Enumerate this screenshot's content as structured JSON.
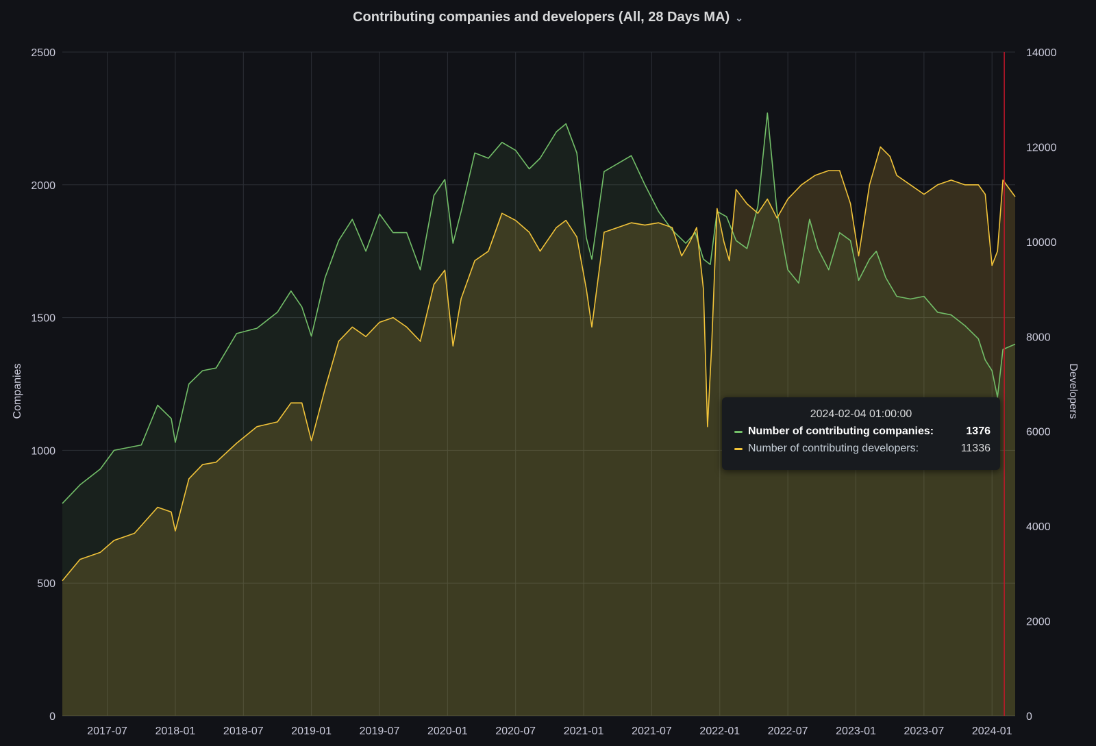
{
  "panel": {
    "title": "Contributing companies and developers (All, 28 Days MA)",
    "chevron_icon": "chevron-down-icon"
  },
  "colors": {
    "background": "#111217",
    "companies": "#73bf69",
    "developers": "#f2c43a",
    "cursor": "#c4162a",
    "grid": "#2c2f36"
  },
  "tooltip": {
    "time": "2024-02-04 01:00:00",
    "rows": [
      {
        "label": "Number of contributing companies:",
        "value": "1376"
      },
      {
        "label": "Number of contributing developers:",
        "value": "11336"
      }
    ]
  },
  "chart_data": {
    "type": "area",
    "title": "Contributing companies and developers (All, 28 Days MA)",
    "x_ticks": [
      "2017-07",
      "2018-01",
      "2018-07",
      "2019-01",
      "2019-07",
      "2020-01",
      "2020-07",
      "2021-01",
      "2021-07",
      "2022-01",
      "2022-07",
      "2023-01",
      "2023-07",
      "2024-01"
    ],
    "x_start": 2017.17,
    "x_end": 2024.17,
    "cursor_x": 2024.09,
    "left_axis": {
      "label": "Companies",
      "ticks": [
        "0",
        "500",
        "1000",
        "1500",
        "2000",
        "2500"
      ],
      "ylim": [
        0,
        2500
      ]
    },
    "right_axis": {
      "label": "Developers",
      "ticks": [
        "0",
        "2000",
        "4000",
        "6000",
        "8000",
        "10000",
        "12000",
        "14000"
      ],
      "ylim": [
        0,
        14000
      ]
    },
    "grid": true,
    "series": [
      {
        "name": "Number of contributing companies",
        "axis": "left",
        "points": [
          [
            2017.17,
            800
          ],
          [
            2017.3,
            870
          ],
          [
            2017.45,
            930
          ],
          [
            2017.55,
            1000
          ],
          [
            2017.75,
            1020
          ],
          [
            2017.87,
            1170
          ],
          [
            2017.97,
            1120
          ],
          [
            2018.0,
            1030
          ],
          [
            2018.1,
            1250
          ],
          [
            2018.2,
            1300
          ],
          [
            2018.3,
            1310
          ],
          [
            2018.45,
            1440
          ],
          [
            2018.6,
            1460
          ],
          [
            2018.75,
            1520
          ],
          [
            2018.85,
            1600
          ],
          [
            2018.93,
            1540
          ],
          [
            2019.0,
            1430
          ],
          [
            2019.1,
            1650
          ],
          [
            2019.2,
            1790
          ],
          [
            2019.3,
            1870
          ],
          [
            2019.4,
            1750
          ],
          [
            2019.5,
            1890
          ],
          [
            2019.6,
            1820
          ],
          [
            2019.7,
            1820
          ],
          [
            2019.8,
            1680
          ],
          [
            2019.9,
            1960
          ],
          [
            2019.98,
            2020
          ],
          [
            2020.04,
            1780
          ],
          [
            2020.1,
            1900
          ],
          [
            2020.2,
            2120
          ],
          [
            2020.3,
            2100
          ],
          [
            2020.4,
            2160
          ],
          [
            2020.5,
            2130
          ],
          [
            2020.6,
            2060
          ],
          [
            2020.68,
            2100
          ],
          [
            2020.8,
            2200
          ],
          [
            2020.87,
            2230
          ],
          [
            2020.95,
            2120
          ],
          [
            2021.02,
            1800
          ],
          [
            2021.06,
            1720
          ],
          [
            2021.15,
            2050
          ],
          [
            2021.25,
            2080
          ],
          [
            2021.35,
            2110
          ],
          [
            2021.45,
            2000
          ],
          [
            2021.55,
            1900
          ],
          [
            2021.65,
            1830
          ],
          [
            2021.75,
            1780
          ],
          [
            2021.82,
            1820
          ],
          [
            2021.88,
            1720
          ],
          [
            2021.93,
            1700
          ],
          [
            2021.98,
            1900
          ],
          [
            2022.05,
            1880
          ],
          [
            2022.12,
            1790
          ],
          [
            2022.2,
            1760
          ],
          [
            2022.28,
            1920
          ],
          [
            2022.35,
            2270
          ],
          [
            2022.42,
            1900
          ],
          [
            2022.5,
            1680
          ],
          [
            2022.58,
            1630
          ],
          [
            2022.66,
            1870
          ],
          [
            2022.72,
            1760
          ],
          [
            2022.8,
            1680
          ],
          [
            2022.88,
            1820
          ],
          [
            2022.96,
            1790
          ],
          [
            2023.02,
            1640
          ],
          [
            2023.1,
            1720
          ],
          [
            2023.15,
            1750
          ],
          [
            2023.22,
            1650
          ],
          [
            2023.3,
            1580
          ],
          [
            2023.4,
            1570
          ],
          [
            2023.5,
            1580
          ],
          [
            2023.6,
            1520
          ],
          [
            2023.7,
            1510
          ],
          [
            2023.8,
            1470
          ],
          [
            2023.9,
            1420
          ],
          [
            2023.95,
            1340
          ],
          [
            2024.0,
            1300
          ],
          [
            2024.04,
            1200
          ],
          [
            2024.08,
            1380
          ],
          [
            2024.17,
            1400
          ]
        ]
      },
      {
        "name": "Number of contributing developers",
        "axis": "right",
        "points": [
          [
            2017.17,
            2850
          ],
          [
            2017.3,
            3300
          ],
          [
            2017.45,
            3450
          ],
          [
            2017.55,
            3700
          ],
          [
            2017.7,
            3850
          ],
          [
            2017.87,
            4400
          ],
          [
            2017.97,
            4300
          ],
          [
            2018.0,
            3900
          ],
          [
            2018.1,
            5000
          ],
          [
            2018.2,
            5300
          ],
          [
            2018.3,
            5350
          ],
          [
            2018.45,
            5750
          ],
          [
            2018.6,
            6100
          ],
          [
            2018.75,
            6200
          ],
          [
            2018.85,
            6600
          ],
          [
            2018.93,
            6600
          ],
          [
            2019.0,
            5800
          ],
          [
            2019.1,
            6900
          ],
          [
            2019.2,
            7900
          ],
          [
            2019.3,
            8200
          ],
          [
            2019.4,
            8000
          ],
          [
            2019.5,
            8300
          ],
          [
            2019.6,
            8400
          ],
          [
            2019.7,
            8200
          ],
          [
            2019.8,
            7900
          ],
          [
            2019.9,
            9100
          ],
          [
            2019.98,
            9400
          ],
          [
            2020.04,
            7800
          ],
          [
            2020.1,
            8800
          ],
          [
            2020.2,
            9600
          ],
          [
            2020.3,
            9800
          ],
          [
            2020.4,
            10600
          ],
          [
            2020.5,
            10450
          ],
          [
            2020.6,
            10200
          ],
          [
            2020.68,
            9800
          ],
          [
            2020.8,
            10300
          ],
          [
            2020.87,
            10450
          ],
          [
            2020.95,
            10100
          ],
          [
            2021.02,
            9000
          ],
          [
            2021.06,
            8200
          ],
          [
            2021.15,
            10200
          ],
          [
            2021.25,
            10300
          ],
          [
            2021.35,
            10400
          ],
          [
            2021.45,
            10350
          ],
          [
            2021.55,
            10400
          ],
          [
            2021.65,
            10300
          ],
          [
            2021.72,
            9700
          ],
          [
            2021.78,
            10000
          ],
          [
            2021.83,
            10300
          ],
          [
            2021.88,
            9000
          ],
          [
            2021.91,
            6100
          ],
          [
            2021.94,
            7800
          ],
          [
            2021.98,
            10700
          ],
          [
            2022.03,
            10000
          ],
          [
            2022.07,
            9600
          ],
          [
            2022.12,
            11100
          ],
          [
            2022.2,
            10800
          ],
          [
            2022.28,
            10600
          ],
          [
            2022.35,
            10900
          ],
          [
            2022.42,
            10500
          ],
          [
            2022.5,
            10900
          ],
          [
            2022.6,
            11200
          ],
          [
            2022.7,
            11400
          ],
          [
            2022.8,
            11500
          ],
          [
            2022.88,
            11500
          ],
          [
            2022.96,
            10800
          ],
          [
            2023.02,
            9700
          ],
          [
            2023.1,
            11200
          ],
          [
            2023.18,
            12000
          ],
          [
            2023.25,
            11800
          ],
          [
            2023.3,
            11400
          ],
          [
            2023.4,
            11200
          ],
          [
            2023.5,
            11000
          ],
          [
            2023.6,
            11200
          ],
          [
            2023.7,
            11300
          ],
          [
            2023.8,
            11200
          ],
          [
            2023.9,
            11200
          ],
          [
            2023.95,
            11000
          ],
          [
            2024.0,
            9500
          ],
          [
            2024.04,
            9800
          ],
          [
            2024.08,
            11300
          ],
          [
            2024.17,
            10950
          ]
        ]
      }
    ]
  }
}
